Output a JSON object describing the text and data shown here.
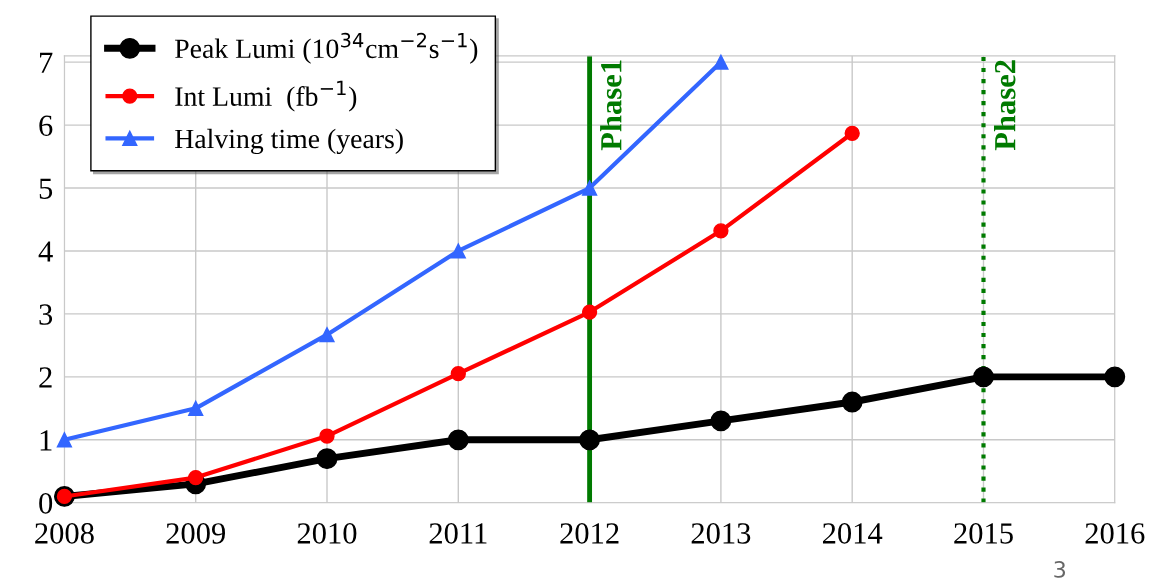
{
  "chart_data": {
    "type": "line",
    "x": [
      2008,
      2009,
      2010,
      2011,
      2012,
      2013,
      2014,
      2015,
      2016
    ],
    "series": [
      {
        "name": "Peak Lumi (10$^{34}$cm$^{−2}$s$^{−1}$)",
        "color": "#000000",
        "marker": "circle",
        "values": [
          0.1,
          0.3,
          0.7,
          1.0,
          1.0,
          1.3,
          1.6,
          2.0,
          2.0
        ]
      },
      {
        "name": "Int Lumi  (fb$^{−1}$)",
        "color": "#ff0000",
        "marker": "circle",
        "values": [
          0.1,
          0.4,
          1.06,
          2.05,
          3.03,
          4.32,
          5.87,
          null,
          null
        ]
      },
      {
        "name": "Halving time (years)",
        "color": "#3366ff",
        "marker": "triangle",
        "values": [
          1.0,
          1.5,
          2.67,
          4.0,
          5.0,
          7.0,
          null,
          null,
          null
        ]
      }
    ],
    "xlim": [
      2008,
      2016
    ],
    "xticks": [
      2008,
      2009,
      2010,
      2011,
      2012,
      2013,
      2014,
      2015,
      2016
    ],
    "ylim": [
      0,
      7.1
    ],
    "yticks": [
      0,
      1,
      2,
      3,
      4,
      5,
      6,
      7
    ],
    "ref_lines": [
      {
        "axis": "x",
        "value": 2012,
        "label": "Phase1",
        "color": "#007a00",
        "line_style": "solid"
      },
      {
        "axis": "x",
        "value": 2015,
        "label": "Phase2",
        "color": "#007a00",
        "line_style": "dotted"
      }
    ],
    "annotations": [
      "3"
    ],
    "grid": true,
    "legend": "top left"
  }
}
